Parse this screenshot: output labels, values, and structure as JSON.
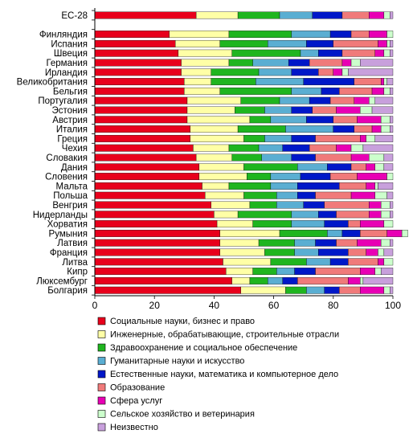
{
  "chart_data": {
    "type": "stacked-bar-horizontal",
    "title": "",
    "xlabel": "",
    "ylabel": "",
    "xlim": [
      0,
      100
    ],
    "x_ticks": [
      0,
      20,
      40,
      60,
      80,
      100
    ],
    "grid": false,
    "legend_position": "bottom",
    "categories": [
      "ЕС-28",
      "",
      "Финляндия",
      "Испания",
      "Швеция",
      "Германия",
      "Ирландия",
      "Великобритания",
      "Бельгия",
      "Португалия",
      "Эстония",
      "Австрия",
      "Италия",
      "Греция",
      "Чехия",
      "Словакия",
      "Дания",
      "Словения",
      "Мальта",
      "Польша",
      "Венгрия",
      "Нидерланды",
      "Хорватия",
      "Румыния",
      "Латвия",
      "Франция",
      "Литва",
      "Кипр",
      "Люксембург",
      "Болгария"
    ],
    "series": [
      {
        "name": "Социальные науки, бизнес и право",
        "color": "#e8001c",
        "values": [
          34,
          null,
          25,
          27,
          28,
          29,
          29,
          30,
          30,
          31,
          31,
          31,
          32,
          32,
          33,
          34,
          35,
          35,
          36,
          37,
          39,
          40,
          41,
          42,
          42,
          42,
          43,
          44,
          46,
          49
        ]
      },
      {
        "name": "Инженерные, обрабатывающие, строительные отрасли",
        "color": "#ffffa6",
        "values": [
          14,
          null,
          20,
          15,
          18,
          16,
          10,
          9,
          12,
          18,
          16,
          21,
          16,
          18,
          12,
          12,
          15,
          16,
          9,
          13,
          13,
          8,
          12,
          20,
          13,
          15,
          16,
          9,
          6,
          15
        ]
      },
      {
        "name": "Здравоохранение и социальное обеспечение",
        "color": "#1fb51f",
        "values": [
          14,
          null,
          21,
          16,
          23,
          8,
          16,
          15,
          24,
          13,
          10,
          7,
          16,
          7,
          10,
          10,
          18,
          8,
          14,
          11,
          9,
          18,
          13,
          16,
          12,
          10,
          12,
          8,
          6,
          7
        ]
      },
      {
        "name": "Гуманитарные науки и искусство",
        "color": "#5aaed2",
        "values": [
          11,
          null,
          13,
          13,
          6,
          12,
          11,
          16,
          10,
          10,
          9,
          12,
          16,
          9,
          8,
          10,
          10,
          10,
          9,
          7,
          9,
          9,
          11,
          5,
          7,
          8,
          8,
          6,
          5,
          6
        ]
      },
      {
        "name": "Естественные науки, математика и компьютерное дело",
        "color": "#0018c8",
        "values": [
          10,
          null,
          7,
          9,
          8,
          7,
          9,
          17,
          6,
          7,
          7,
          9,
          7,
          8,
          9,
          8,
          8,
          10,
          14,
          6,
          7,
          6,
          8,
          6,
          7,
          10,
          6,
          7,
          5,
          5
        ]
      },
      {
        "name": "Образование",
        "color": "#f07a7a",
        "values": [
          9,
          null,
          6,
          15,
          11,
          11,
          5,
          9,
          11,
          8,
          8,
          8,
          6,
          15,
          9,
          12,
          5,
          9,
          9,
          12,
          15,
          11,
          4,
          9,
          7,
          6,
          10,
          15,
          17,
          7
        ]
      },
      {
        "name": "Сфера услуг",
        "color": "#e800b4",
        "values": [
          5,
          null,
          6,
          3,
          3,
          3,
          3,
          1,
          4,
          5,
          8,
          8,
          3,
          2,
          5,
          6,
          3,
          10,
          3,
          8,
          4,
          4,
          8,
          5,
          8,
          4,
          2,
          5,
          4,
          8
        ]
      },
      {
        "name": "Сельское хозяйство и ветеринария",
        "color": "#ccffcc",
        "values": [
          2,
          null,
          2,
          1,
          2,
          3,
          2,
          1,
          2,
          2,
          4,
          3,
          3,
          3,
          4,
          5,
          3,
          2,
          1,
          4,
          3,
          3,
          3,
          2,
          3,
          2,
          3,
          2,
          1,
          2
        ]
      },
      {
        "name": "Неизвестно",
        "color": "#c8a0dc",
        "values": [
          1,
          null,
          0,
          1,
          1,
          11,
          15,
          2,
          1,
          6,
          7,
          1,
          1,
          6,
          10,
          3,
          3,
          0,
          5,
          2,
          1,
          1,
          0,
          0,
          1,
          3,
          0,
          4,
          10,
          1
        ]
      }
    ]
  }
}
